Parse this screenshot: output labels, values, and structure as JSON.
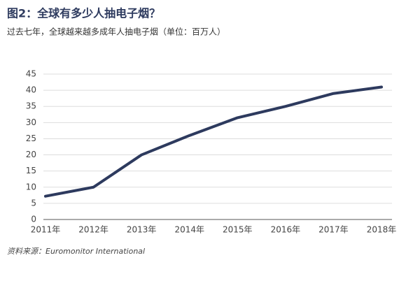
{
  "chart_data": {
    "type": "line",
    "title": "图2：全球有多少人抽电子烟？",
    "subtitle": "过去七年，全球越来越多成年人抽电子烟（单位：百万人）",
    "source": "资料来源：Euromonitor International",
    "categories": [
      "2011年",
      "2012年",
      "2013年",
      "2014年",
      "2015年",
      "2016年",
      "2017年",
      "2018年"
    ],
    "values": [
      7.2,
      10,
      20,
      26,
      31.5,
      35,
      39,
      41
    ],
    "color": "#2d3a5e",
    "ylim": [
      0,
      45
    ],
    "yticks": [
      0,
      5,
      10,
      15,
      20,
      25,
      30,
      35,
      40,
      45
    ],
    "grid": true
  }
}
